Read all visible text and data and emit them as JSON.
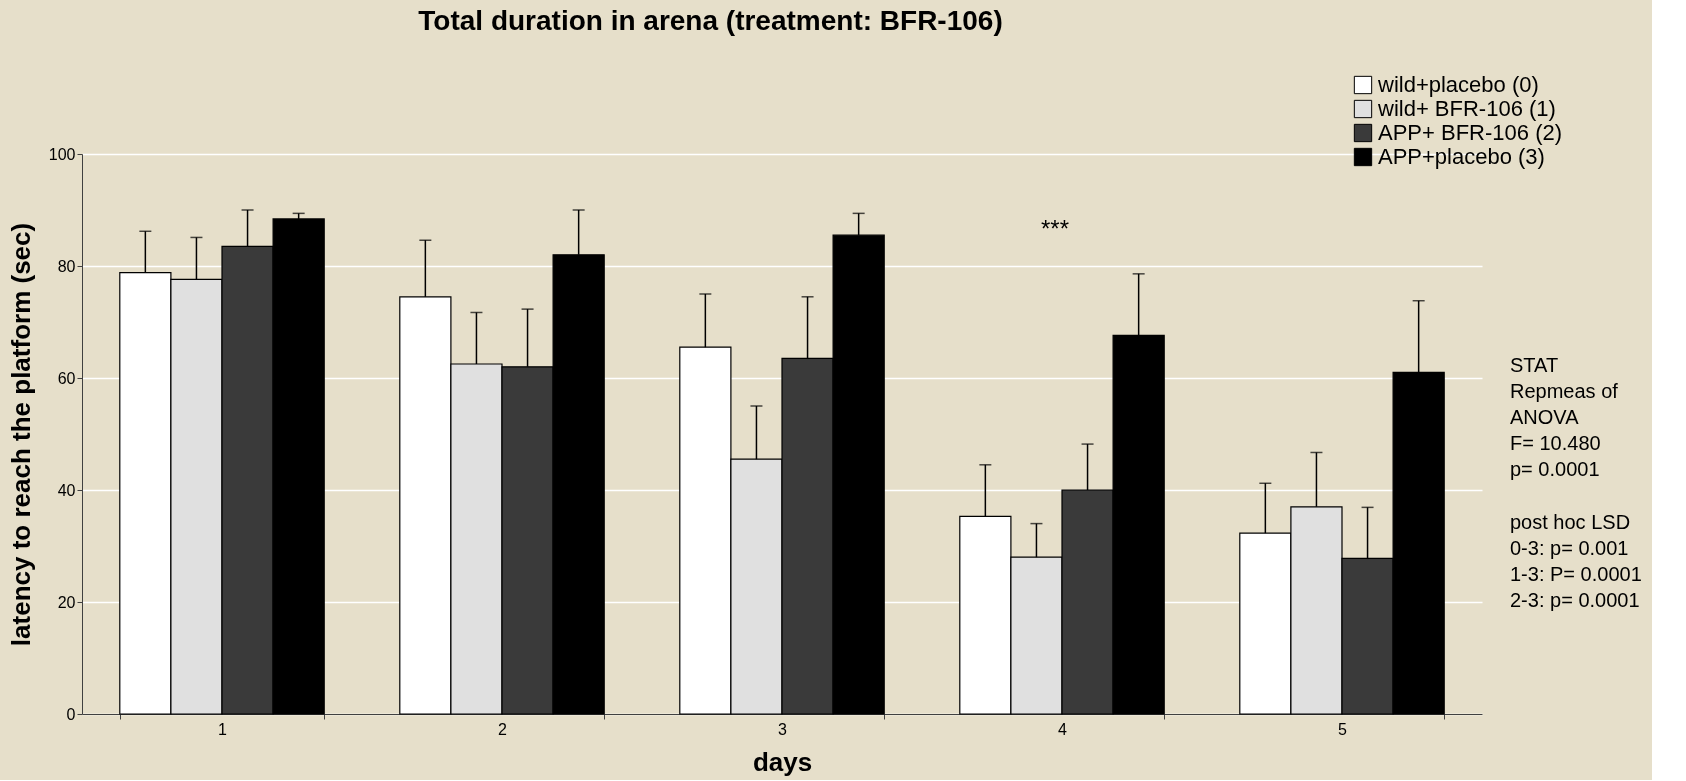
{
  "chart_data": {
    "type": "bar",
    "title": "Total duration in arena (treatment: BFR-106)",
    "xlabel": "days",
    "ylabel": "latency to reach the platform (sec)",
    "categories": [
      "1",
      "2",
      "3",
      "4",
      "5"
    ],
    "series": [
      {
        "name": "wild+placebo (0)",
        "color": "#ffffff",
        "values": [
          78.8,
          74.5,
          65.5,
          35.3,
          32.3
        ],
        "errors": [
          7.4,
          10.1,
          9.5,
          9.2,
          8.9
        ]
      },
      {
        "name": "wild+ BFR-106 (1)",
        "color": "#e0e0e0",
        "values": [
          77.6,
          62.5,
          45.5,
          28,
          37
        ],
        "errors": [
          7.5,
          9.2,
          9.5,
          6,
          9.7
        ]
      },
      {
        "name": "APP+ BFR-106 (2)",
        "color": "#3a3a3a",
        "values": [
          83.5,
          62,
          63.5,
          40,
          27.8
        ],
        "errors": [
          6.5,
          10.3,
          11,
          8.2,
          9.1
        ]
      },
      {
        "name": "APP+placebo (3)",
        "color": "#000000",
        "values": [
          88.4,
          82,
          85.5,
          67.6,
          61
        ],
        "errors": [
          1,
          8,
          3.9,
          11,
          12.8
        ]
      }
    ],
    "ylim": [
      0,
      100
    ],
    "yticks": [
      0,
      20,
      40,
      60,
      80,
      100
    ],
    "grid": "y",
    "legend": "top right",
    "annotations": [
      "***",
      "STAT\nRepmeas of\nANOVA\nF= 10.480\np= 0.0001",
      "post hoc LSD\n0-3: p= 0.001\n1-3: P= 0.0001\n2-3: p= 0.0001"
    ]
  }
}
